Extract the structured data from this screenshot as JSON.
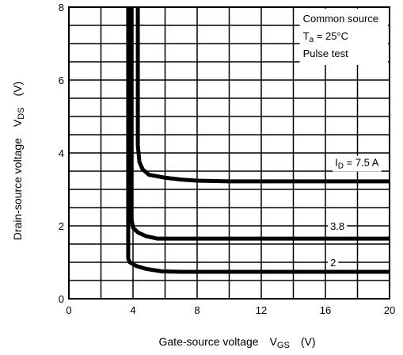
{
  "chart_data": {
    "type": "line",
    "title": "",
    "xlabel": "Gate-source voltage",
    "xlabel_symbol": "V",
    "xlabel_subscript": "GS",
    "xlabel_unit": "(V)",
    "ylabel": "Drain-source voltage",
    "ylabel_symbol": "V",
    "ylabel_subscript": "DS",
    "ylabel_unit": "(V)",
    "xlim": [
      0,
      20
    ],
    "ylim": [
      0,
      8
    ],
    "x_major_ticks": [
      0,
      4,
      8,
      12,
      16,
      20
    ],
    "y_major_ticks": [
      0,
      2,
      4,
      6,
      8
    ],
    "x_grid_step": 2,
    "y_grid_step": 0.5,
    "grid": true,
    "notes": {
      "line1": "Common source",
      "line2_symbol": "T",
      "line2_subscript": "a",
      "line2_rest": " = 25°C",
      "line3": "Pulse test"
    },
    "series": [
      {
        "name": "7.5 A",
        "label_prefix_symbol": "I",
        "label_prefix_subscript": "D",
        "label_prefix_rest": " = ",
        "label_value": "7.5 A",
        "label_at": [
          16.6,
          3.75
        ],
        "x": [
          4.3,
          4.3,
          4.4,
          4.6,
          5.0,
          6.0,
          7.0,
          8.0,
          10.0,
          20.0
        ],
        "y": [
          8.0,
          4.2,
          3.75,
          3.55,
          3.4,
          3.32,
          3.27,
          3.24,
          3.22,
          3.22
        ]
      },
      {
        "name": "3.8",
        "label_value": "3.8",
        "label_at": [
          16.3,
          2.0
        ],
        "x": [
          3.9,
          3.9,
          4.0,
          4.3,
          4.8,
          5.5,
          7.0,
          20.0
        ],
        "y": [
          8.0,
          2.2,
          1.95,
          1.82,
          1.72,
          1.65,
          1.65,
          1.65
        ]
      },
      {
        "name": "2",
        "label_value": "2",
        "label_at": [
          16.3,
          1.0
        ],
        "x": [
          3.7,
          3.7,
          3.8,
          4.2,
          4.8,
          5.8,
          7.0,
          20.0
        ],
        "y": [
          8.0,
          1.1,
          1.0,
          0.9,
          0.82,
          0.75,
          0.74,
          0.74
        ]
      }
    ],
    "line_color": "#000000"
  }
}
